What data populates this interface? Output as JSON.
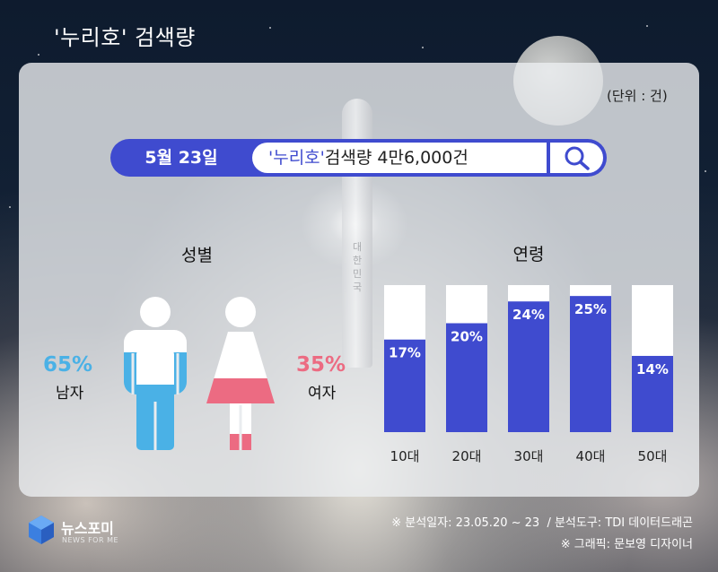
{
  "title": "'누리호' 검색량",
  "unit_label": "(단위 : 건)",
  "search": {
    "date": "5월 23일",
    "keyword": "'누리호'",
    "text": "검색량 4만6,000건"
  },
  "rocket_text": "대한민국",
  "gender": {
    "heading": "성별",
    "male": {
      "percent": "65%",
      "label": "남자",
      "value": 65,
      "color": "#4ab1e6"
    },
    "female": {
      "percent": "35%",
      "label": "여자",
      "value": 35,
      "color": "#ec6b82"
    }
  },
  "chart_data": {
    "type": "bar",
    "title": "연령",
    "categories": [
      "10대",
      "20대",
      "30대",
      "40대",
      "50대"
    ],
    "values": [
      17,
      20,
      24,
      25,
      14
    ],
    "value_labels": [
      "17%",
      "20%",
      "24%",
      "25%",
      "14%"
    ],
    "ylim": [
      0,
      27
    ],
    "bar_color": "#3f4bcf"
  },
  "footer": {
    "logo_main": "뉴스포미",
    "logo_sub": "NEWS FOR ME",
    "analysis_note": "※ 분석일자: 23.05.20 ~ 23  / 분석도구: TDI 데이터드래곤",
    "graphic_note": "※ 그래픽: 문보영 디자이너"
  }
}
